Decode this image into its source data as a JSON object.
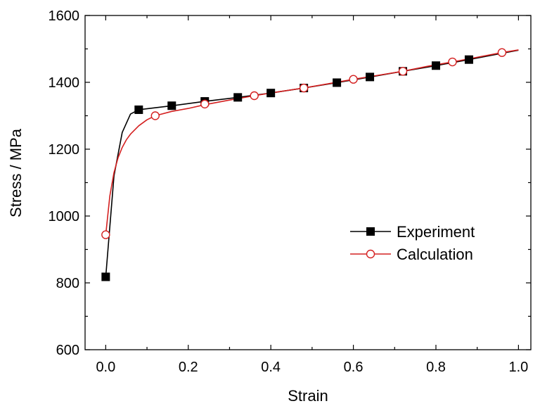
{
  "chart_data": {
    "type": "line",
    "title": "",
    "xlabel": "Strain",
    "ylabel": "Stress / MPa",
    "xlim": [
      -0.05,
      1.03
    ],
    "ylim": [
      600,
      1600
    ],
    "x_ticks": [
      0.0,
      0.2,
      0.4,
      0.6,
      0.8,
      1.0
    ],
    "x_tick_labels": [
      "0.0",
      "0.2",
      "0.4",
      "0.6",
      "0.8",
      "1.0"
    ],
    "y_ticks": [
      600,
      800,
      1000,
      1200,
      1400,
      1600
    ],
    "y_tick_labels": [
      "600",
      "800",
      "1000",
      "1200",
      "1400",
      "1600"
    ],
    "grid": false,
    "legend": {
      "placement": "center-right"
    },
    "series": [
      {
        "name": "Experiment",
        "color": "#000000",
        "marker": "filled-square",
        "line_x": [
          0.0,
          0.02,
          0.04,
          0.06,
          0.08,
          0.16,
          0.24,
          0.32,
          0.4,
          0.48,
          0.56,
          0.64,
          0.72,
          0.8,
          0.88,
          0.96,
          1.0
        ],
        "line_y": [
          818,
          1120,
          1250,
          1305,
          1318,
          1330,
          1343,
          1355,
          1368,
          1383,
          1399,
          1416,
          1433,
          1450,
          1468,
          1487,
          1496
        ],
        "marker_x": [
          0.0,
          0.08,
          0.16,
          0.24,
          0.32,
          0.4,
          0.48,
          0.56,
          0.64,
          0.72,
          0.8,
          0.88
        ],
        "marker_y": [
          818,
          1318,
          1330,
          1343,
          1355,
          1368,
          1383,
          1399,
          1416,
          1433,
          1450,
          1468
        ]
      },
      {
        "name": "Calculation",
        "color": "#d42020",
        "marker": "open-circle",
        "line_x": [
          0.0,
          0.01,
          0.02,
          0.03,
          0.04,
          0.05,
          0.06,
          0.08,
          0.1,
          0.12,
          0.16,
          0.2,
          0.24,
          0.3,
          0.36,
          0.42,
          0.48,
          0.54,
          0.6,
          0.66,
          0.72,
          0.78,
          0.84,
          0.9,
          0.96,
          1.0
        ],
        "line_y": [
          944,
          1060,
          1130,
          1175,
          1205,
          1228,
          1245,
          1270,
          1288,
          1300,
          1313,
          1322,
          1333,
          1347,
          1360,
          1372,
          1383,
          1396,
          1409,
          1421,
          1433,
          1448,
          1461,
          1475,
          1489,
          1497
        ],
        "marker_x": [
          0.0,
          0.12,
          0.24,
          0.36,
          0.48,
          0.6,
          0.72,
          0.84,
          0.96
        ],
        "marker_y": [
          944,
          1300,
          1335,
          1360,
          1383,
          1409,
          1433,
          1461,
          1489
        ]
      }
    ]
  }
}
